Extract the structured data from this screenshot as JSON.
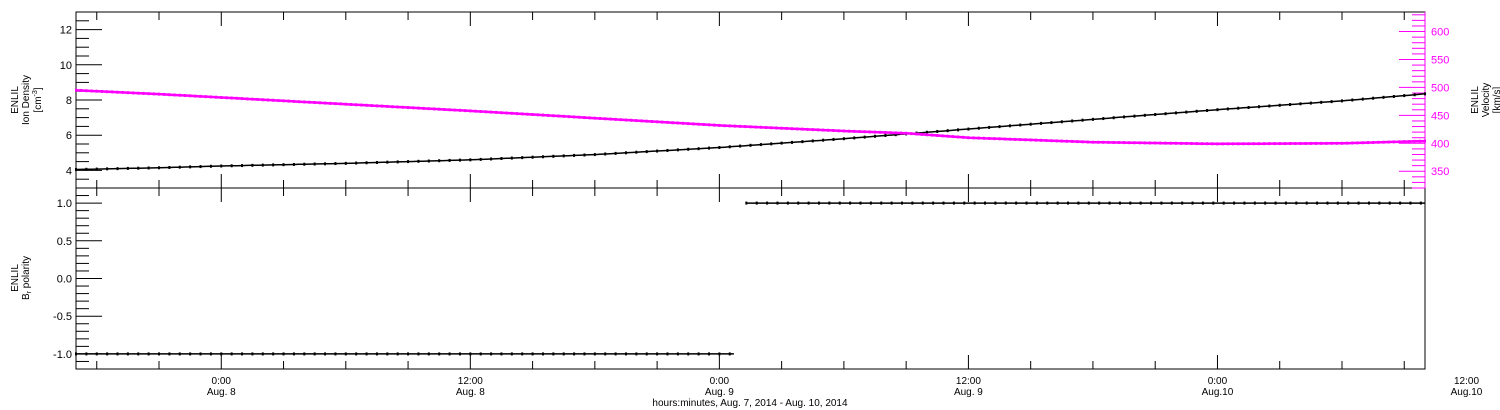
{
  "chart_data": [
    {
      "type": "line",
      "panel": "top",
      "ylabel_left": [
        "ENLIL",
        "Ion Density",
        "[cm^-3]"
      ],
      "ylabel_right": [
        "ENLIL",
        "Velocity",
        "[km/s]"
      ],
      "ylim_left": [
        3,
        13
      ],
      "ylim_right": [
        320,
        635
      ],
      "yticks_left": [
        4,
        6,
        8,
        10,
        12
      ],
      "yticks_right": [
        350,
        400,
        450,
        500,
        550,
        600
      ],
      "x_range_hours": [
        -7,
        58
      ],
      "series": [
        {
          "axis": "left",
          "color": "#000000",
          "x": [
            -7,
            -3,
            0,
            6,
            12,
            18,
            24,
            30,
            36,
            42,
            48,
            54,
            58
          ],
          "y": [
            4.05,
            4.15,
            4.25,
            4.4,
            4.6,
            4.9,
            5.3,
            5.8,
            6.35,
            6.9,
            7.45,
            7.95,
            8.35
          ]
        },
        {
          "axis": "right",
          "color": "#ff00ff",
          "x": [
            -7,
            -3,
            0,
            6,
            12,
            18,
            24,
            30,
            33,
            36,
            42,
            48,
            54,
            58
          ],
          "y": [
            495,
            488,
            482,
            470,
            458,
            445,
            432,
            422,
            418,
            410,
            402,
            399,
            400,
            404
          ]
        }
      ]
    },
    {
      "type": "scatter",
      "panel": "bottom",
      "ylabel": [
        "ENLIL",
        "B_r polarity"
      ],
      "ylim": [
        -1.2,
        1.2
      ],
      "yticks": [
        "1.0",
        "0.5",
        "0.0",
        "-0.5",
        "-1.0"
      ],
      "x_range_hours": [
        -7,
        58
      ],
      "series": [
        {
          "color": "#000000",
          "x_start": -7,
          "x_end": 24.7,
          "value": -1.0
        },
        {
          "color": "#000000",
          "x_start": 25.3,
          "x_end": 58,
          "value": 1.0
        }
      ]
    }
  ],
  "x_axis": {
    "ticks": [
      {
        "hour": 0,
        "time": "0:00",
        "date": "Aug. 8"
      },
      {
        "hour": 12,
        "time": "12:00",
        "date": "Aug. 8"
      },
      {
        "hour": 24,
        "time": "0:00",
        "date": "Aug. 9"
      },
      {
        "hour": 36,
        "time": "12:00",
        "date": "Aug. 9"
      },
      {
        "hour": 48,
        "time": "0:00",
        "date": "Aug.10"
      },
      {
        "hour": 60,
        "time": "12:00",
        "date": "Aug.10"
      }
    ],
    "xlabel": "hours:minutes, Aug.  7, 2014 - Aug. 10, 2014"
  },
  "labels": {
    "top_left_line1": "ENLIL",
    "top_left_line2": "Ion Density",
    "top_left_unit": "[cm",
    "top_left_unit_sup": "-3",
    "top_left_unit_end": "]",
    "top_right_line1": "ENLIL",
    "top_right_line2": "Velocity",
    "top_right_unit": "[km/s]",
    "bottom_left_line1": "ENLIL",
    "bottom_left_line2_main": "B",
    "bottom_left_line2_sub": "r",
    "bottom_left_line2_rest": " polarity",
    "xlabel": "hours:minutes, Aug.  7, 2014 - Aug. 10, 2014"
  },
  "colors": {
    "density": "#000000",
    "velocity": "#ff00ff",
    "frame": "#000000"
  }
}
